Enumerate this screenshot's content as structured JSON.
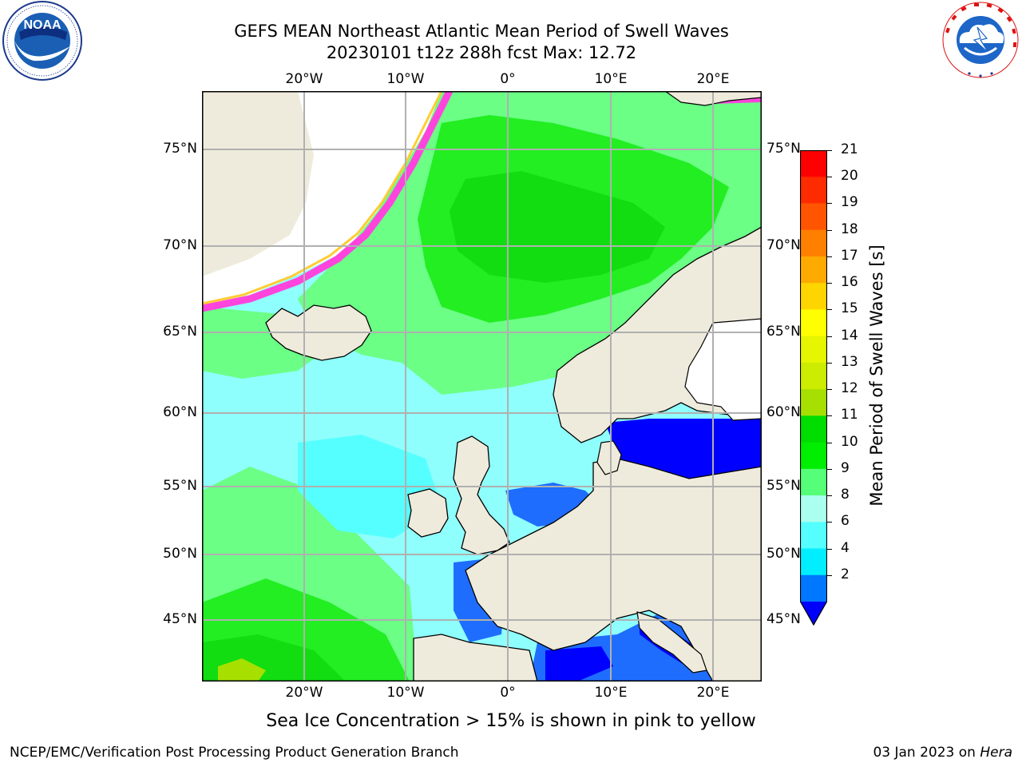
{
  "title": {
    "line1": "GEFS MEAN Northeast Atlantic Mean Period of Swell Waves",
    "line2": "20230101 t12z 288h fcst   Max: 12.72"
  },
  "logos": {
    "left": {
      "name": "noaa-logo",
      "text": "NOAA",
      "ring_text": "NATIONAL OCEANIC AND ATMOSPHERIC ADMINISTRATION · U.S. DEPARTMENT OF COMMERCE"
    },
    "right": {
      "name": "nws-logo",
      "ring_text": "NATIONAL WEATHER SERVICE"
    }
  },
  "map": {
    "projection": "plate carree",
    "lon_range": [
      -29.5,
      24.5
    ],
    "lat_range": [
      41,
      78
    ],
    "lon_ticks": [
      "20°W",
      "10°W",
      "0°",
      "10°E",
      "20°E"
    ],
    "lat_ticks_left": [
      "75°N",
      "70°N",
      "65°N",
      "60°N",
      "55°N",
      "50°N",
      "45°N"
    ],
    "lat_ticks_right": [
      "75°N",
      "70°N",
      "65°N",
      "60°N",
      "55°N",
      "50°N",
      "45°N"
    ],
    "grid": true,
    "land_color": "#efebdc",
    "ocean_base_color": "#8ffffd"
  },
  "colorbar": {
    "label": "Mean Period of Swell Waves [s]",
    "ticks": [
      "21",
      "20",
      "19",
      "18",
      "17",
      "16",
      "15",
      "14",
      "13",
      "12",
      "11",
      "10",
      "9",
      "8",
      "6",
      "4",
      "2"
    ],
    "colors_top_to_bottom": [
      "#ff0000",
      "#ff2b00",
      "#ff5500",
      "#ff8000",
      "#ffaa00",
      "#ffd500",
      "#ffff00",
      "#e6f500",
      "#ccec00",
      "#a7e000",
      "#00dd00",
      "#00ee00",
      "#55ff77",
      "#aaffee",
      "#55ffff",
      "#00eeff",
      "#0077ff"
    ],
    "under_color": "#0000ff"
  },
  "caption": "Sea Ice Concentration > 15% is shown in pink to yellow",
  "footer": {
    "left": "NCEP/EMC/Verification Post Processing Product Generation Branch",
    "right_date": "03 Jan 2023 on ",
    "right_host": "Hera"
  }
}
